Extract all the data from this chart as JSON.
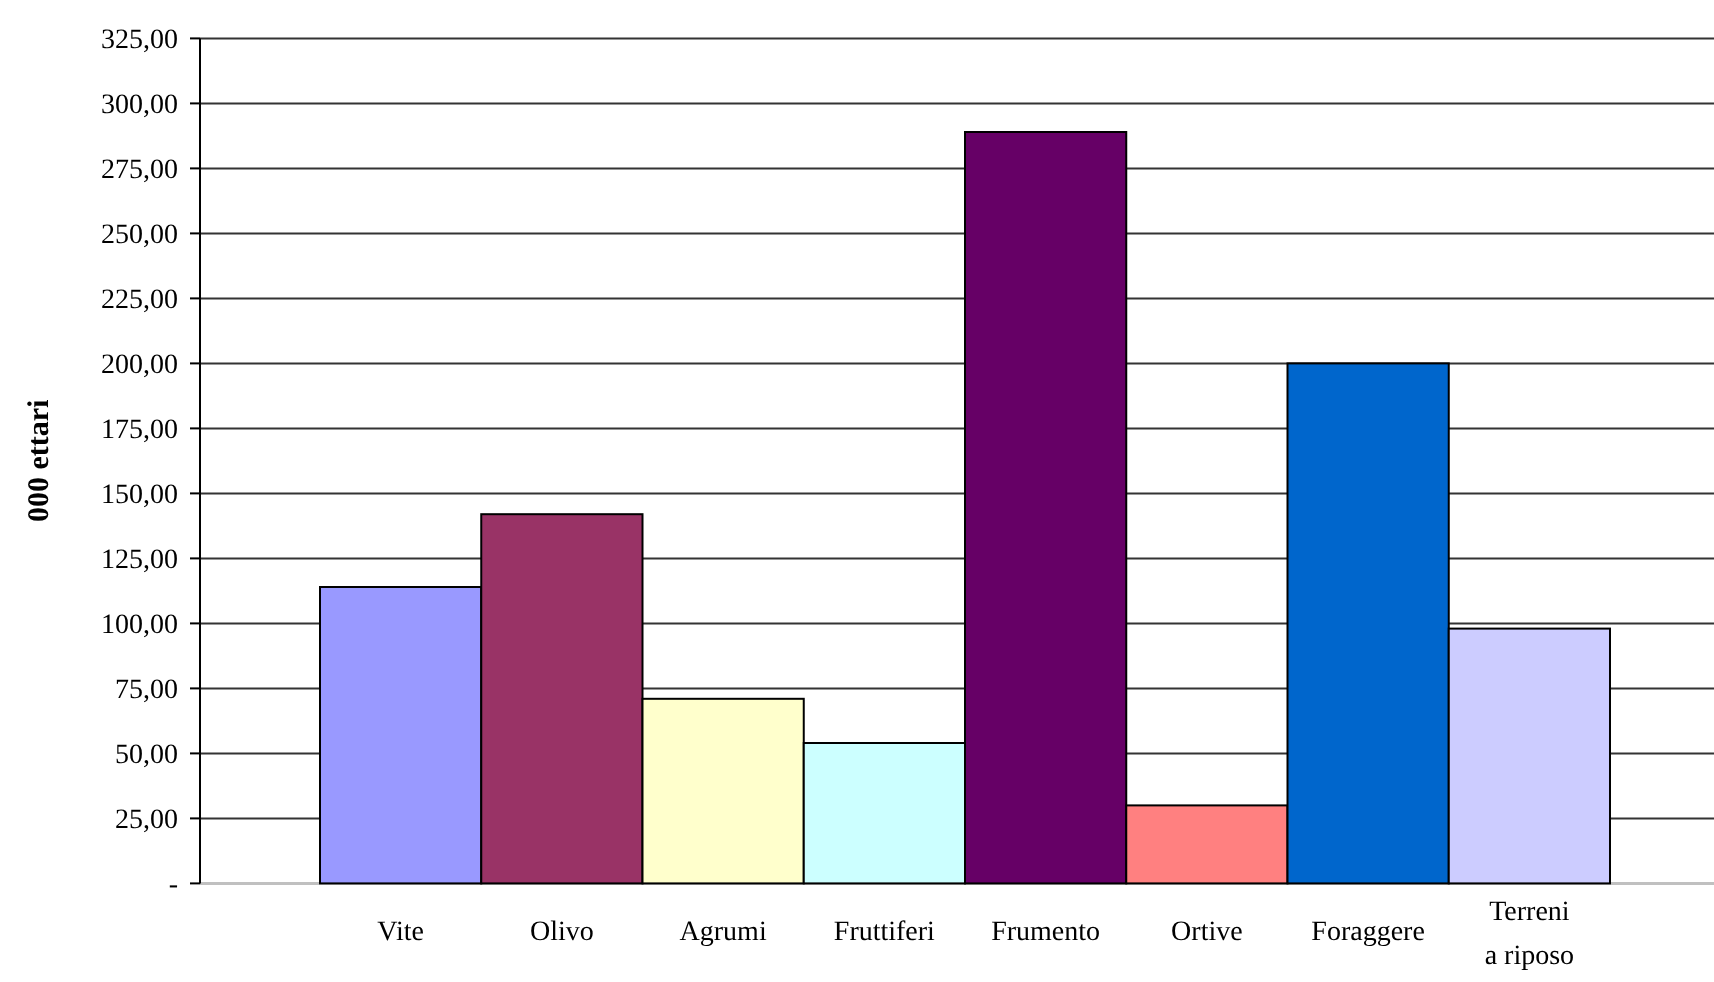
{
  "chart_data": {
    "type": "bar",
    "ylabel": "000 ettari",
    "categories": [
      "Vite",
      "Olivo",
      "Agrumi",
      "Fruttiferi",
      "Frumento",
      "Ortive",
      "Foraggere",
      "Terreni a riposo"
    ],
    "values": [
      114,
      142,
      71,
      54,
      289,
      30,
      200,
      98
    ],
    "colors": [
      "#9999ff",
      "#993366",
      "#ffffcc",
      "#ccffff",
      "#660066",
      "#ff8080",
      "#0066cc",
      "#ccccff"
    ],
    "ylim": [
      0,
      325
    ],
    "yticks": [
      {
        "value": 0,
        "label": "-"
      },
      {
        "value": 25,
        "label": "25,00"
      },
      {
        "value": 50,
        "label": "50,00"
      },
      {
        "value": 75,
        "label": "75,00"
      },
      {
        "value": 100,
        "label": "100,00"
      },
      {
        "value": 125,
        "label": "125,00"
      },
      {
        "value": 150,
        "label": "150,00"
      },
      {
        "value": 175,
        "label": "175,00"
      },
      {
        "value": 200,
        "label": "200,00"
      },
      {
        "value": 225,
        "label": "225,00"
      },
      {
        "value": 250,
        "label": "250,00"
      },
      {
        "value": 275,
        "label": "275,00"
      },
      {
        "value": 300,
        "label": "300,00"
      },
      {
        "value": 325,
        "label": "325,00"
      }
    ],
    "grid": "y"
  }
}
